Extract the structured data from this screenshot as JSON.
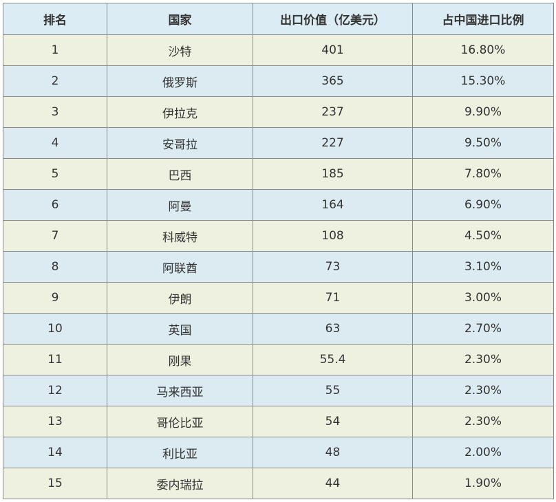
{
  "table": {
    "header": [
      "排名",
      "国家",
      "出口价值（亿美元）",
      "占中国进口比例"
    ],
    "rows": [
      [
        "1",
        "沙特",
        "401",
        "16.80%"
      ],
      [
        "2",
        "俄罗斯",
        "365",
        "15.30%"
      ],
      [
        "3",
        "伊拉克",
        "237",
        "9.90%"
      ],
      [
        "4",
        "安哥拉",
        "227",
        "9.50%"
      ],
      [
        "5",
        "巴西",
        "185",
        "7.80%"
      ],
      [
        "6",
        "阿曼",
        "164",
        "6.90%"
      ],
      [
        "7",
        "科威特",
        "108",
        "4.50%"
      ],
      [
        "8",
        "阿联酋",
        "73",
        "3.10%"
      ],
      [
        "9",
        "伊朗",
        "71",
        "3.00%"
      ],
      [
        "10",
        "英国",
        "63",
        "2.70%"
      ],
      [
        "11",
        "刚果",
        "55.4",
        "2.30%"
      ],
      [
        "12",
        "马来西亚",
        "55",
        "2.30%"
      ],
      [
        "13",
        "哥伦比亚",
        "54",
        "2.30%"
      ],
      [
        "14",
        "利比亚",
        "48",
        "2.00%"
      ],
      [
        "15",
        "委内瑞拉",
        "44",
        "1.90%"
      ]
    ]
  }
}
